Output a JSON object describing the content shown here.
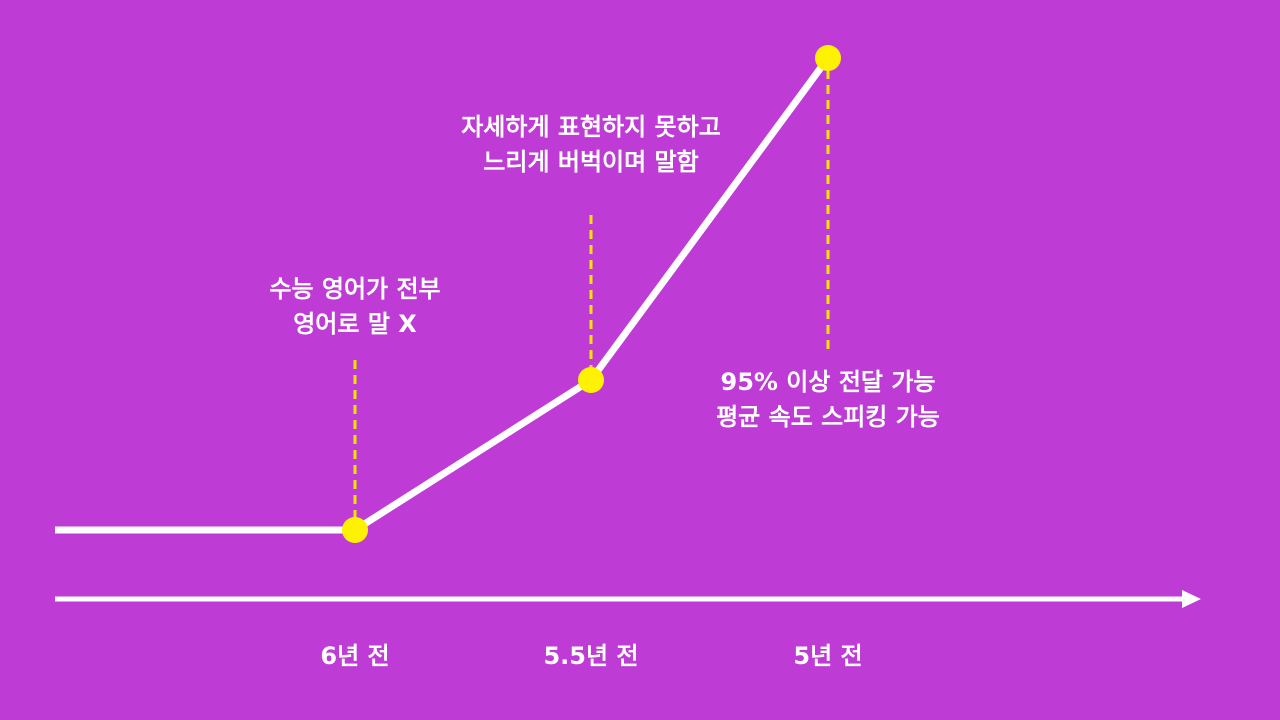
{
  "timeline": {
    "points": [
      {
        "label": "6년 전",
        "note": [
          "수능 영어가 전부",
          "영어로 말 X"
        ]
      },
      {
        "label": "5.5년 전",
        "note": [
          "자세하게 표현하지 못하고",
          "느리게 버벅이며 말함"
        ]
      },
      {
        "label": "5년 전",
        "note": [
          "95% 이상 전달 가능",
          "평균 속도 스피킹 가능"
        ]
      }
    ]
  }
}
